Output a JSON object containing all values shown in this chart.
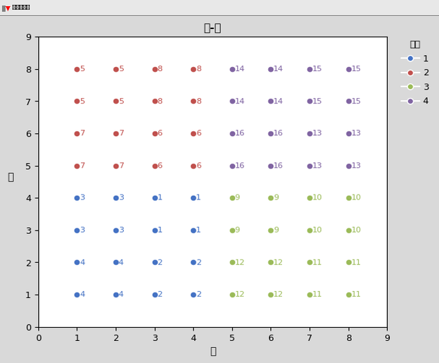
{
  "title": "列-行",
  "xlabel": "列",
  "ylabel": "行",
  "xlim": [
    0,
    9
  ],
  "ylim": [
    0,
    9
  ],
  "xticks": [
    0,
    1,
    2,
    3,
    4,
    5,
    6,
    7,
    8,
    9
  ],
  "yticks": [
    0,
    1,
    2,
    3,
    4,
    5,
    6,
    7,
    8,
    9
  ],
  "season_colors": {
    "1": "#4472C4",
    "2": "#C0504D",
    "3": "#9BBB59",
    "4": "#8064A2"
  },
  "legend_title": "季度",
  "fig_bg_color": "#D4D0C8",
  "titlebar_bg": "#E8E8E8",
  "plot_bg": "#FFFFFF",
  "outer_bg": "#D9D9D9",
  "points": [
    {
      "col": 1,
      "row": 8,
      "treatment": 5,
      "season": "2"
    },
    {
      "col": 2,
      "row": 8,
      "treatment": 5,
      "season": "2"
    },
    {
      "col": 3,
      "row": 8,
      "treatment": 8,
      "season": "2"
    },
    {
      "col": 4,
      "row": 8,
      "treatment": 8,
      "season": "2"
    },
    {
      "col": 5,
      "row": 8,
      "treatment": 14,
      "season": "4"
    },
    {
      "col": 6,
      "row": 8,
      "treatment": 14,
      "season": "4"
    },
    {
      "col": 7,
      "row": 8,
      "treatment": 15,
      "season": "4"
    },
    {
      "col": 8,
      "row": 8,
      "treatment": 15,
      "season": "4"
    },
    {
      "col": 1,
      "row": 7,
      "treatment": 5,
      "season": "2"
    },
    {
      "col": 2,
      "row": 7,
      "treatment": 5,
      "season": "2"
    },
    {
      "col": 3,
      "row": 7,
      "treatment": 8,
      "season": "2"
    },
    {
      "col": 4,
      "row": 7,
      "treatment": 8,
      "season": "2"
    },
    {
      "col": 5,
      "row": 7,
      "treatment": 14,
      "season": "4"
    },
    {
      "col": 6,
      "row": 7,
      "treatment": 14,
      "season": "4"
    },
    {
      "col": 7,
      "row": 7,
      "treatment": 15,
      "season": "4"
    },
    {
      "col": 8,
      "row": 7,
      "treatment": 15,
      "season": "4"
    },
    {
      "col": 1,
      "row": 6,
      "treatment": 7,
      "season": "2"
    },
    {
      "col": 2,
      "row": 6,
      "treatment": 7,
      "season": "2"
    },
    {
      "col": 3,
      "row": 6,
      "treatment": 6,
      "season": "2"
    },
    {
      "col": 4,
      "row": 6,
      "treatment": 6,
      "season": "2"
    },
    {
      "col": 5,
      "row": 6,
      "treatment": 16,
      "season": "4"
    },
    {
      "col": 6,
      "row": 6,
      "treatment": 16,
      "season": "4"
    },
    {
      "col": 7,
      "row": 6,
      "treatment": 13,
      "season": "4"
    },
    {
      "col": 8,
      "row": 6,
      "treatment": 13,
      "season": "4"
    },
    {
      "col": 1,
      "row": 5,
      "treatment": 7,
      "season": "2"
    },
    {
      "col": 2,
      "row": 5,
      "treatment": 7,
      "season": "2"
    },
    {
      "col": 3,
      "row": 5,
      "treatment": 6,
      "season": "2"
    },
    {
      "col": 4,
      "row": 5,
      "treatment": 6,
      "season": "2"
    },
    {
      "col": 5,
      "row": 5,
      "treatment": 16,
      "season": "4"
    },
    {
      "col": 6,
      "row": 5,
      "treatment": 16,
      "season": "4"
    },
    {
      "col": 7,
      "row": 5,
      "treatment": 13,
      "season": "4"
    },
    {
      "col": 8,
      "row": 5,
      "treatment": 13,
      "season": "4"
    },
    {
      "col": 1,
      "row": 4,
      "treatment": 3,
      "season": "1"
    },
    {
      "col": 2,
      "row": 4,
      "treatment": 3,
      "season": "1"
    },
    {
      "col": 3,
      "row": 4,
      "treatment": 1,
      "season": "1"
    },
    {
      "col": 4,
      "row": 4,
      "treatment": 1,
      "season": "1"
    },
    {
      "col": 5,
      "row": 4,
      "treatment": 9,
      "season": "3"
    },
    {
      "col": 6,
      "row": 4,
      "treatment": 9,
      "season": "3"
    },
    {
      "col": 7,
      "row": 4,
      "treatment": 10,
      "season": "3"
    },
    {
      "col": 8,
      "row": 4,
      "treatment": 10,
      "season": "3"
    },
    {
      "col": 1,
      "row": 3,
      "treatment": 3,
      "season": "1"
    },
    {
      "col": 2,
      "row": 3,
      "treatment": 3,
      "season": "1"
    },
    {
      "col": 3,
      "row": 3,
      "treatment": 1,
      "season": "1"
    },
    {
      "col": 4,
      "row": 3,
      "treatment": 1,
      "season": "1"
    },
    {
      "col": 5,
      "row": 3,
      "treatment": 9,
      "season": "3"
    },
    {
      "col": 6,
      "row": 3,
      "treatment": 9,
      "season": "3"
    },
    {
      "col": 7,
      "row": 3,
      "treatment": 10,
      "season": "3"
    },
    {
      "col": 8,
      "row": 3,
      "treatment": 10,
      "season": "3"
    },
    {
      "col": 1,
      "row": 2,
      "treatment": 4,
      "season": "1"
    },
    {
      "col": 2,
      "row": 2,
      "treatment": 4,
      "season": "1"
    },
    {
      "col": 3,
      "row": 2,
      "treatment": 2,
      "season": "1"
    },
    {
      "col": 4,
      "row": 2,
      "treatment": 2,
      "season": "1"
    },
    {
      "col": 5,
      "row": 2,
      "treatment": 12,
      "season": "3"
    },
    {
      "col": 6,
      "row": 2,
      "treatment": 12,
      "season": "3"
    },
    {
      "col": 7,
      "row": 2,
      "treatment": 11,
      "season": "3"
    },
    {
      "col": 8,
      "row": 2,
      "treatment": 11,
      "season": "3"
    },
    {
      "col": 1,
      "row": 1,
      "treatment": 4,
      "season": "1"
    },
    {
      "col": 2,
      "row": 1,
      "treatment": 4,
      "season": "1"
    },
    {
      "col": 3,
      "row": 1,
      "treatment": 2,
      "season": "1"
    },
    {
      "col": 4,
      "row": 1,
      "treatment": 2,
      "season": "1"
    },
    {
      "col": 5,
      "row": 1,
      "treatment": 12,
      "season": "3"
    },
    {
      "col": 6,
      "row": 1,
      "treatment": 12,
      "season": "3"
    },
    {
      "col": 7,
      "row": 1,
      "treatment": 11,
      "season": "3"
    },
    {
      "col": 8,
      "row": 1,
      "treatment": 11,
      "season": "3"
    }
  ]
}
